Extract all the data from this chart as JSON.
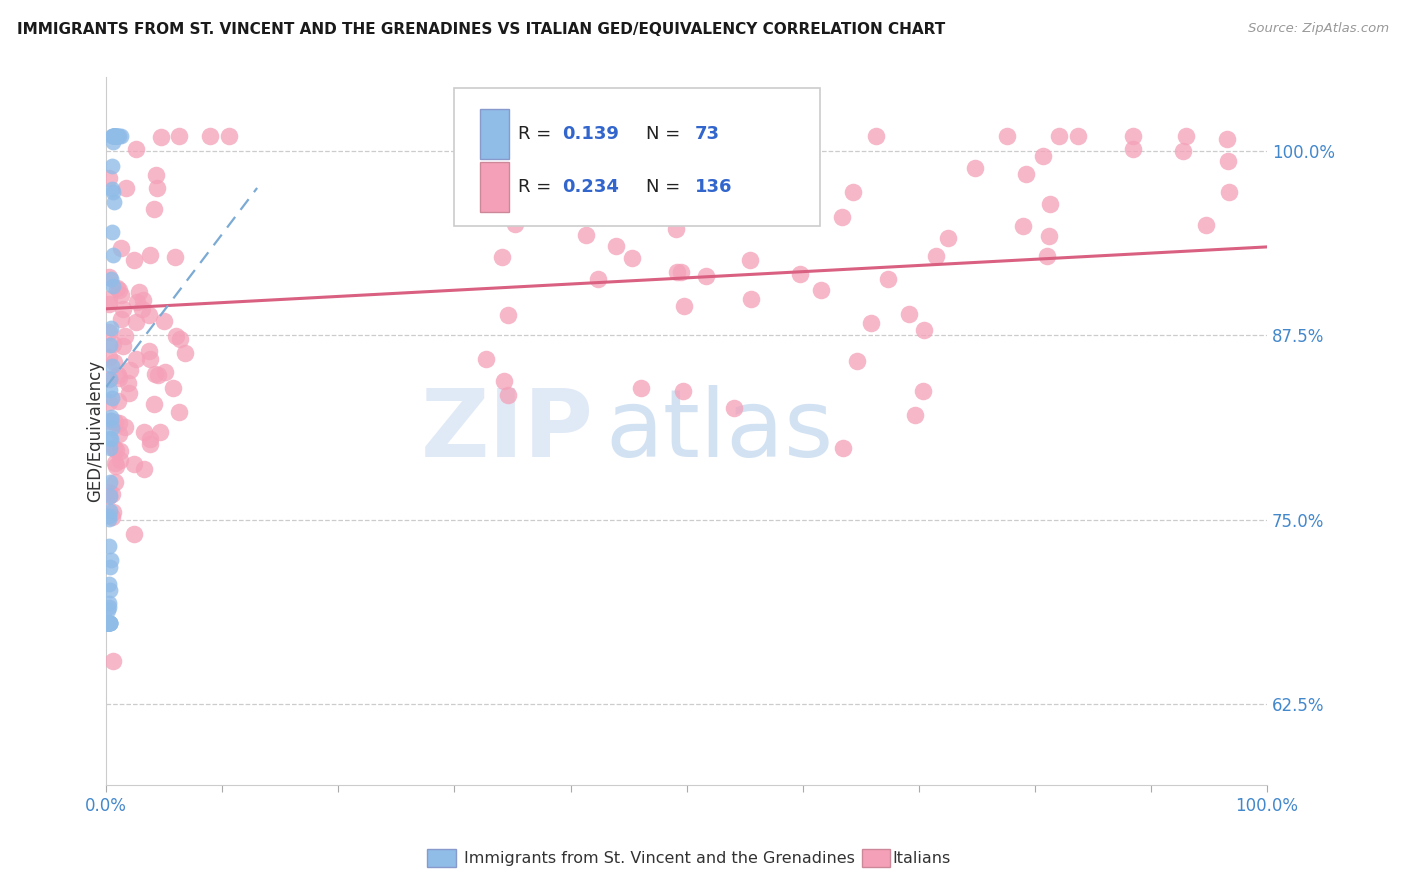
{
  "title": "IMMIGRANTS FROM ST. VINCENT AND THE GRENADINES VS ITALIAN GED/EQUIVALENCY CORRELATION CHART",
  "source": "Source: ZipAtlas.com",
  "ylabel": "GED/Equivalency",
  "blue_color": "#90bce8",
  "pink_color": "#f4a0b8",
  "blue_line_color": "#7baad4",
  "pink_line_color": "#d96080",
  "tick_color": "#4488cc",
  "watermark_zip": "ZIP",
  "watermark_atlas": "atlas",
  "watermark_color_zip": "#c8d8f0",
  "watermark_color_atlas": "#90b8e0",
  "ytick_vals": [
    1.0,
    0.875,
    0.75,
    0.625
  ],
  "ytick_labels": [
    "100.0%",
    "87.5%",
    "75.0%",
    "62.5%"
  ],
  "xlim": [
    0.0,
    1.0
  ],
  "ylim": [
    0.57,
    1.05
  ],
  "legend_entries": [
    {
      "color": "#90bce8",
      "border": "#8899cc",
      "R": "0.139",
      "N": "73"
    },
    {
      "color": "#f4a0b8",
      "border": "#cc8899",
      "R": "0.234",
      "N": "136"
    }
  ]
}
